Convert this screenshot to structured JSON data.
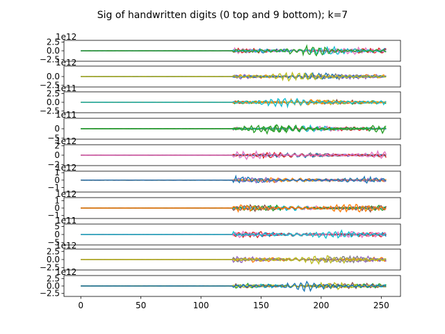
{
  "chart_data": {
    "type": "line",
    "title": "Sig of handwritten digits (0 top and 9 bottom); k=7",
    "xlabel": "",
    "ylabel": "",
    "xlim": [
      -14,
      266
    ],
    "x_ticks": [
      0,
      50,
      100,
      150,
      200,
      250
    ],
    "x_range_data": [
      0,
      254
    ],
    "signal_onset_x": 127,
    "grid": false,
    "legend": "none",
    "series_colors": [
      "#1f77b4",
      "#ff7f0e",
      "#2ca02c",
      "#d62728",
      "#9467bd",
      "#8c564b",
      "#e377c2",
      "#7f7f7f",
      "#bcbd22",
      "#17becf"
    ],
    "panels": [
      {
        "name": "digit 0",
        "offset_text": "1e12",
        "ylim": [
          -3.0,
          3.0
        ],
        "yticks": [
          2.5,
          0.0,
          -2.5
        ],
        "ytick_labels": [
          "2.5",
          "0.0",
          "−2.5"
        ],
        "peak": 2.6,
        "dominant_color": "#2ca02c"
      },
      {
        "name": "digit 1",
        "offset_text": "1e12",
        "ylim": [
          -3.0,
          3.0
        ],
        "yticks": [
          0.0,
          -2.5
        ],
        "ytick_labels": [
          "0.0",
          "−2.5"
        ],
        "peak": 2.4,
        "dominant_color": "#bcbd22"
      },
      {
        "name": "digit 2",
        "offset_text": "1e11",
        "ylim": [
          -3.0,
          3.0
        ],
        "yticks": [
          2.5,
          0.0,
          -2.5
        ],
        "ytick_labels": [
          "2.5",
          "0.0",
          "−2.5"
        ],
        "peak": 2.3,
        "dominant_color": "#17becf"
      },
      {
        "name": "digit 3",
        "offset_text": "1e11",
        "ylim": [
          -5.5,
          5.5
        ],
        "yticks": [
          0,
          -5
        ],
        "ytick_labels": [
          "0",
          "−5"
        ],
        "peak": 4.5,
        "dominant_color": "#2ca02c"
      },
      {
        "name": "digit 4",
        "offset_text": "1e12",
        "ylim": [
          -2.2,
          2.2
        ],
        "yticks": [
          2,
          0,
          -2
        ],
        "ytick_labels": [
          "2",
          "0",
          "−2"
        ],
        "peak": 1.6,
        "dominant_color": "#e377c2"
      },
      {
        "name": "digit 5",
        "offset_text": "1e12",
        "ylim": [
          -1.6,
          1.2
        ],
        "yticks": [
          1,
          0,
          -1
        ],
        "ytick_labels": [
          "1",
          "0",
          "−1"
        ],
        "peak": 0.9,
        "dominant_color": "#1f77b4"
      },
      {
        "name": "digit 6",
        "offset_text": "1e12",
        "ylim": [
          -1.4,
          1.4
        ],
        "yticks": [
          1,
          0,
          -1
        ],
        "ytick_labels": [
          "1",
          "0",
          "−1"
        ],
        "peak": 1.2,
        "dominant_color": "#ff7f0e"
      },
      {
        "name": "digit 7",
        "offset_text": "1e11",
        "ylim": [
          -6.5,
          6.5
        ],
        "yticks": [
          5,
          0,
          -5
        ],
        "ytick_labels": [
          "5",
          "0",
          "−5"
        ],
        "peak": 5.0,
        "dominant_color": "#17becf"
      },
      {
        "name": "digit 8",
        "offset_text": "1e12",
        "ylim": [
          -3.2,
          3.2
        ],
        "yticks": [
          2.5,
          0.0,
          -2.5
        ],
        "ytick_labels": [
          "2.5",
          "0.0",
          "−2.5"
        ],
        "peak": 2.6,
        "dominant_color": "#bcbd22"
      },
      {
        "name": "digit 9",
        "offset_text": "1e12",
        "ylim": [
          -3.5,
          3.5
        ],
        "yticks": [
          2.5,
          0.0,
          -2.5
        ],
        "ytick_labels": [
          "2.5",
          "0.0",
          "−2.5"
        ],
        "peak": 3.0,
        "dominant_color": "#1f77b4"
      }
    ]
  }
}
